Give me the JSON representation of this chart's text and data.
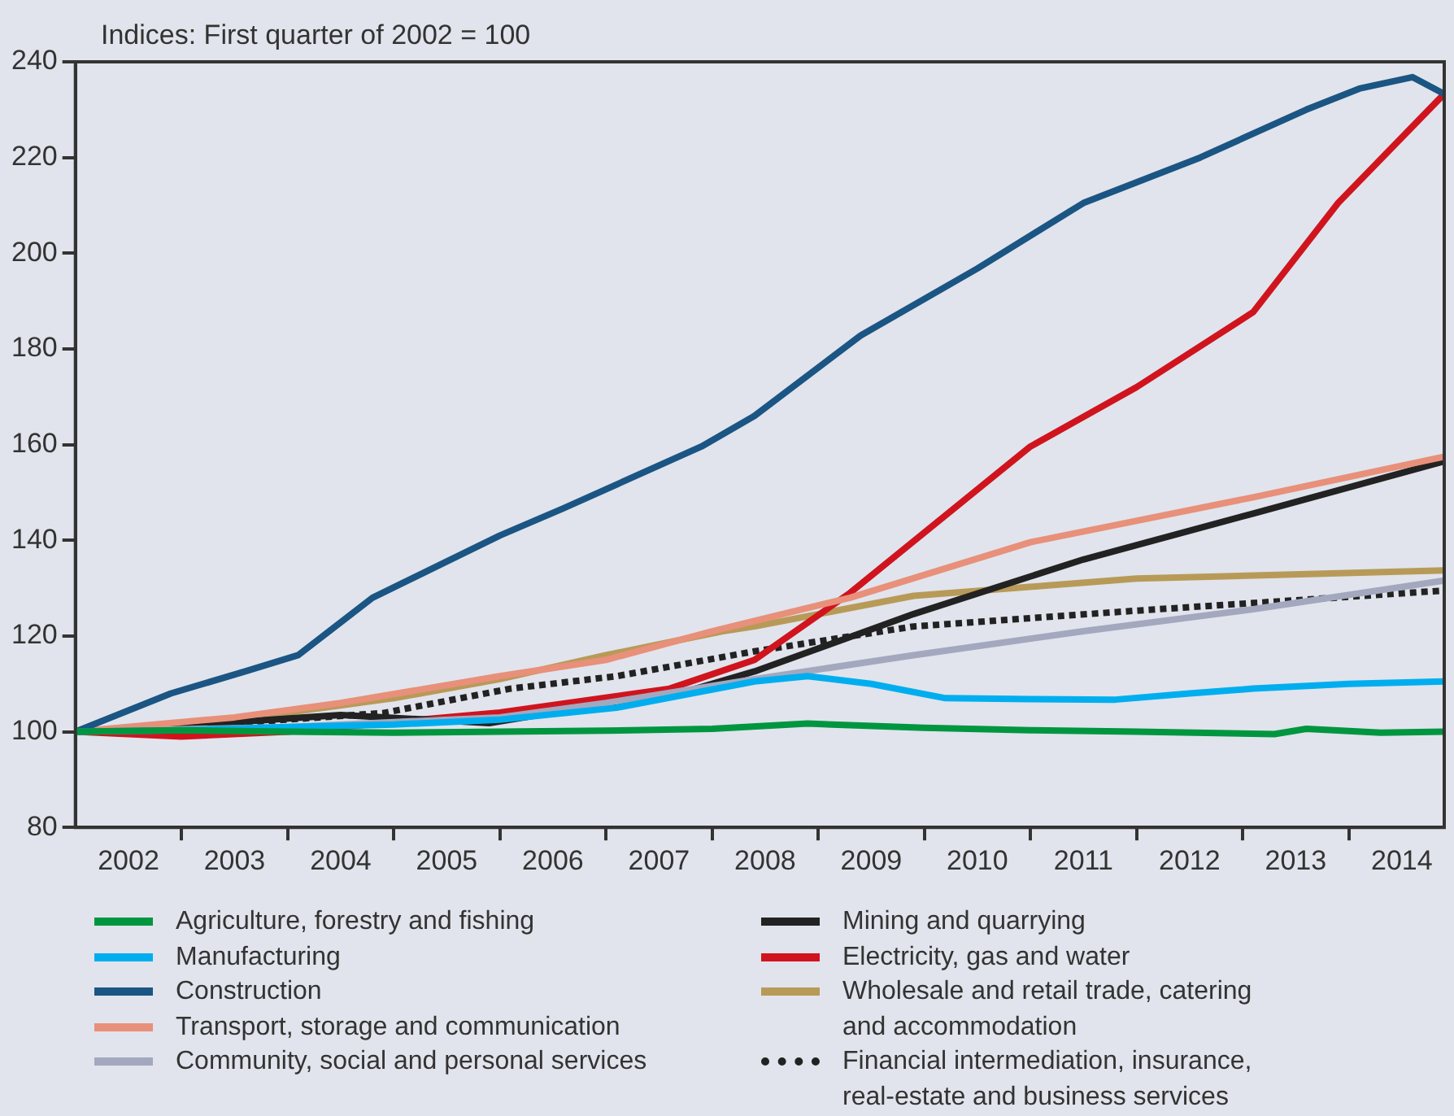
{
  "chart_data": {
    "type": "line",
    "ylabel": "Indices: First quarter of 2002 = 100",
    "legend": "bottom",
    "xlim": [
      2002,
      2014.9
    ],
    "ylim": [
      80,
      240
    ],
    "yticks": [
      80,
      100,
      120,
      140,
      160,
      180,
      200,
      220,
      240
    ],
    "xticks": [
      {
        "value": 2002.5,
        "label": "2002"
      },
      {
        "value": 2003,
        "label": null
      },
      {
        "value": 2003.5,
        "label": "2003"
      },
      {
        "value": 2004,
        "label": null
      },
      {
        "value": 2004.5,
        "label": "2004"
      },
      {
        "value": 2005,
        "label": null
      },
      {
        "value": 2005.5,
        "label": "2005"
      },
      {
        "value": 2006,
        "label": null
      },
      {
        "value": 2006.5,
        "label": "2006"
      },
      {
        "value": 2007,
        "label": null
      },
      {
        "value": 2007.5,
        "label": "2007"
      },
      {
        "value": 2008,
        "label": null
      },
      {
        "value": 2008.5,
        "label": "2008"
      },
      {
        "value": 2009,
        "label": null
      },
      {
        "value": 2009.5,
        "label": "2009"
      },
      {
        "value": 2010,
        "label": null
      },
      {
        "value": 2010.5,
        "label": "2010"
      },
      {
        "value": 2011,
        "label": null
      },
      {
        "value": 2011.5,
        "label": "2011"
      },
      {
        "value": 2012,
        "label": null
      },
      {
        "value": 2012.5,
        "label": "2012"
      },
      {
        "value": 2013,
        "label": null
      },
      {
        "value": 2013.5,
        "label": "2013"
      },
      {
        "value": 2014,
        "label": null
      },
      {
        "value": 2014.5,
        "label": "2014"
      }
    ],
    "series": [
      {
        "name": "Agriculture, forestry and fishing",
        "color": "#00963f",
        "x": [
          2002,
          2003,
          2004,
          2005,
          2006,
          2007,
          2008,
          2008.9,
          2010,
          2011,
          2012,
          2013.3,
          2013.6,
          2014.3,
          2014.9
        ],
        "values": [
          100,
          100.3,
          100,
          99.8,
          100,
          100.2,
          100.6,
          101.7,
          100.8,
          100.3,
          100,
          99.5,
          100.6,
          99.8,
          100
        ]
      },
      {
        "name": "Manufacturing",
        "color": "#00aeef",
        "x": [
          2002,
          2003,
          2004,
          2005,
          2006,
          2007.1,
          2008.4,
          2008.9,
          2009.5,
          2010.2,
          2011,
          2011.8,
          2012.5,
          2013.1,
          2014,
          2014.9
        ],
        "values": [
          100,
          100.3,
          101,
          101.5,
          102.5,
          105,
          110.5,
          111.6,
          110,
          107,
          106.8,
          106.7,
          108,
          109,
          110,
          110.5
        ]
      },
      {
        "name": "Construction",
        "color": "#1b5583",
        "x": [
          2002,
          2002.9,
          2003.6,
          2004.1,
          2004.8,
          2006,
          2006.6,
          2007.9,
          2008.4,
          2009.4,
          2010.5,
          2011.5,
          2012.6,
          2013.6,
          2014.1,
          2014.6,
          2014.9
        ],
        "values": [
          100,
          108,
          112.6,
          116,
          128,
          141,
          146.7,
          159.6,
          166,
          182.8,
          196.8,
          210.5,
          220,
          230,
          234.4,
          236.8,
          233.3
        ]
      },
      {
        "name": "Transport, storage and communication",
        "color": "#e8907a",
        "x": [
          2002,
          2003.5,
          2004.5,
          2006,
          2007,
          2008,
          2009.3,
          2011,
          2013.1,
          2014.9
        ],
        "values": [
          100,
          103,
          106,
          111.6,
          115,
          121,
          128,
          139.6,
          149,
          157.5
        ]
      },
      {
        "name": "Community, social and personal services",
        "color": "#a3a8bf",
        "x": [
          2002,
          2004,
          2005,
          2006,
          2007,
          2008.4,
          2009.9,
          2011.5,
          2013.1,
          2014.9
        ],
        "values": [
          100,
          101,
          102,
          103,
          106,
          111,
          116,
          121,
          125.6,
          131.6
        ]
      },
      {
        "name": "Mining and quarrying",
        "color": "#222222",
        "x": [
          2002,
          2003.5,
          2004.5,
          2005.9,
          2006.5,
          2007.6,
          2008.4,
          2009.9,
          2011.5,
          2013.1,
          2014.9
        ],
        "values": [
          100,
          102,
          103.5,
          101.8,
          104,
          107.4,
          112.6,
          124.6,
          136,
          145.6,
          156.5
        ]
      },
      {
        "name": "Electricity, gas and water",
        "color": "#d0141e",
        "x": [
          2002,
          2003,
          2004,
          2005,
          2006,
          2007.6,
          2008.4,
          2009.3,
          2011,
          2012,
          2013.1,
          2013.9,
          2014.9
        ],
        "values": [
          100,
          99,
          100,
          102,
          104,
          109,
          115,
          129,
          159.6,
          172,
          187.7,
          210.5,
          233.3
        ]
      },
      {
        "name": "Wholesale and retail trade, catering and accommodation",
        "color": "#b89a58",
        "x": [
          2002,
          2003,
          2004,
          2005,
          2006,
          2007,
          2008.1,
          2008.4,
          2009.9,
          2012,
          2014.9
        ],
        "values": [
          100,
          101,
          104,
          107,
          111,
          116,
          121,
          122,
          128.4,
          132,
          133.7
        ]
      },
      {
        "name": "Financial intermediation, insurance, real-estate and business services",
        "color": "#222222",
        "line_style": "dotted",
        "x": [
          2002,
          2003,
          2004.9,
          2006.1,
          2007.1,
          2008.4,
          2009.9,
          2012,
          2014.9
        ],
        "values": [
          100,
          101,
          103.9,
          109,
          111.6,
          116.8,
          122,
          125.3,
          129.5
        ]
      }
    ]
  }
}
